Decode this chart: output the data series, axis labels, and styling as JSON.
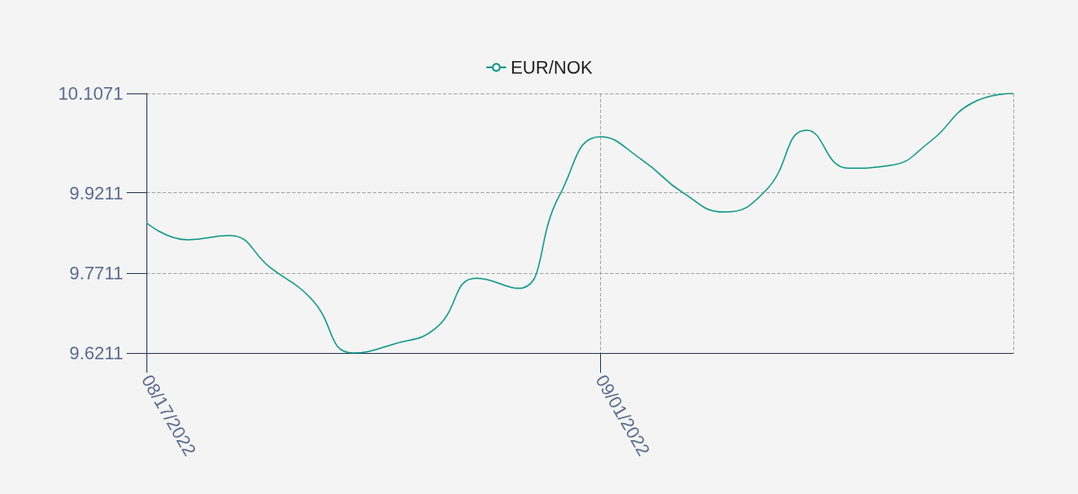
{
  "chart_data": {
    "type": "line",
    "categories": [
      "08/17/2022",
      null,
      null,
      null,
      null,
      null,
      null,
      null,
      null,
      null,
      null,
      "09/01/2022",
      null,
      null,
      null,
      null,
      null,
      null,
      null,
      null,
      null,
      null
    ],
    "series": [
      {
        "name": "EUR/NOK",
        "color": "#16998a",
        "values": [
          9.865,
          9.833,
          9.841,
          9.781,
          9.722,
          9.6211,
          9.638,
          9.667,
          9.761,
          9.742,
          9.915,
          10.026,
          9.983,
          9.921,
          9.885,
          9.925,
          10.038,
          9.967,
          9.972,
          10.018,
          10.089,
          10.1071
        ]
      }
    ],
    "ylim": [
      9.6211,
      10.1071
    ],
    "yticks": [
      9.6211,
      9.7711,
      9.9211,
      10.1071
    ],
    "grid": true,
    "legend": "top",
    "marker": "none",
    "line_style": "solid"
  }
}
